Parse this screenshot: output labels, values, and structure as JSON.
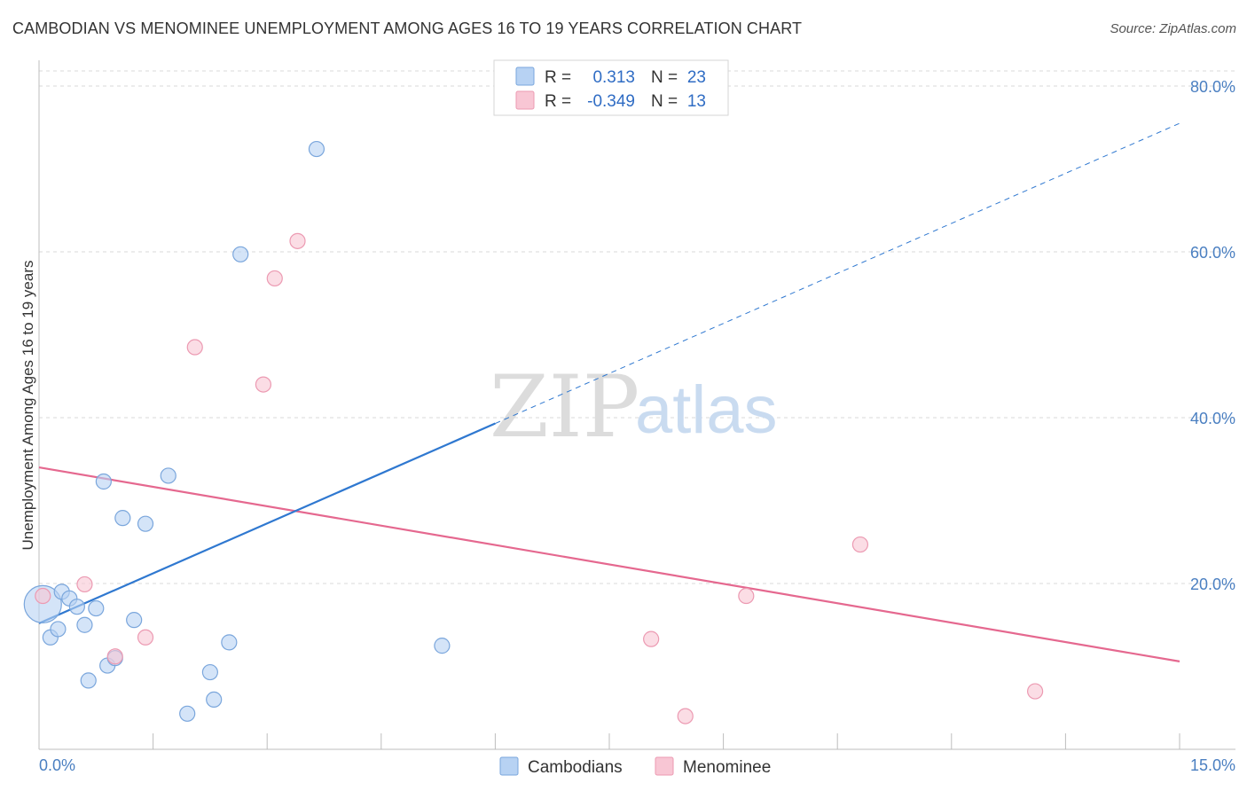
{
  "title": "CAMBODIAN VS MENOMINEE UNEMPLOYMENT AMONG AGES 16 TO 19 YEARS CORRELATION CHART",
  "source": "Source: ZipAtlas.com",
  "watermark": {
    "zip": "ZIP",
    "atlas": "atlas"
  },
  "colors": {
    "cambodians_fill": "#b7d2f3",
    "cambodians_stroke": "#7aa6dc",
    "cambodians_line": "#2f78d0",
    "menominee_fill": "#f8c6d4",
    "menominee_stroke": "#ec9ab2",
    "menominee_line": "#e5688f",
    "tick_text": "#4a7fc1",
    "grid": "#d9d9d9"
  },
  "legend": {
    "rows": [
      {
        "r_label": "R =",
        "r_value": "0.313",
        "n_label": "N =",
        "n_value": "23"
      },
      {
        "r_label": "R =",
        "r_value": "-0.349",
        "n_label": "N =",
        "n_value": "13"
      }
    ]
  },
  "chart_data": {
    "type": "scatter",
    "xlabel": "",
    "ylabel": "Unemployment Among Ages 16 to 19 years",
    "xlim": [
      0,
      15
    ],
    "ylim": [
      0,
      80
    ],
    "x_tick_labels": {
      "min": "0.0%",
      "max": "15.0%"
    },
    "y_ticks": [
      20,
      40,
      60,
      80
    ],
    "y_tick_labels": [
      "20.0%",
      "40.0%",
      "60.0%",
      "80.0%"
    ],
    "grid": true,
    "series": [
      {
        "name": "Cambodians",
        "points": [
          {
            "x": 0.05,
            "y": 17.5,
            "large": true
          },
          {
            "x": 0.15,
            "y": 13.5
          },
          {
            "x": 0.25,
            "y": 14.5
          },
          {
            "x": 0.3,
            "y": 19.0
          },
          {
            "x": 0.4,
            "y": 18.2
          },
          {
            "x": 0.5,
            "y": 17.2
          },
          {
            "x": 0.6,
            "y": 15.0
          },
          {
            "x": 0.65,
            "y": 8.3
          },
          {
            "x": 0.75,
            "y": 17.0
          },
          {
            "x": 0.85,
            "y": 32.3
          },
          {
            "x": 0.9,
            "y": 10.1
          },
          {
            "x": 1.0,
            "y": 11.0
          },
          {
            "x": 1.1,
            "y": 27.9
          },
          {
            "x": 1.25,
            "y": 15.6
          },
          {
            "x": 1.4,
            "y": 27.2
          },
          {
            "x": 1.7,
            "y": 33.0
          },
          {
            "x": 1.95,
            "y": 4.3
          },
          {
            "x": 2.25,
            "y": 9.3
          },
          {
            "x": 2.3,
            "y": 6.0
          },
          {
            "x": 2.5,
            "y": 12.9
          },
          {
            "x": 2.65,
            "y": 59.7
          },
          {
            "x": 3.65,
            "y": 72.4
          },
          {
            "x": 5.3,
            "y": 12.5
          }
        ],
        "trend": {
          "x0": 0,
          "y0": 15.2,
          "x1": 6.0,
          "y1": 39.3,
          "dash_to_x": 15.0,
          "dash_to_y": 75.5
        }
      },
      {
        "name": "Menominee",
        "points": [
          {
            "x": 0.05,
            "y": 18.5
          },
          {
            "x": 0.6,
            "y": 19.9
          },
          {
            "x": 1.0,
            "y": 11.2
          },
          {
            "x": 1.4,
            "y": 13.5
          },
          {
            "x": 2.05,
            "y": 48.5
          },
          {
            "x": 2.95,
            "y": 44.0
          },
          {
            "x": 3.1,
            "y": 56.8
          },
          {
            "x": 3.4,
            "y": 61.3
          },
          {
            "x": 8.05,
            "y": 13.3
          },
          {
            "x": 8.5,
            "y": 4.0
          },
          {
            "x": 9.3,
            "y": 18.5
          },
          {
            "x": 10.8,
            "y": 24.7
          },
          {
            "x": 13.1,
            "y": 7.0
          }
        ],
        "trend": {
          "x0": 0,
          "y0": 34.0,
          "x1": 15.0,
          "y1": 10.6
        }
      }
    ]
  }
}
